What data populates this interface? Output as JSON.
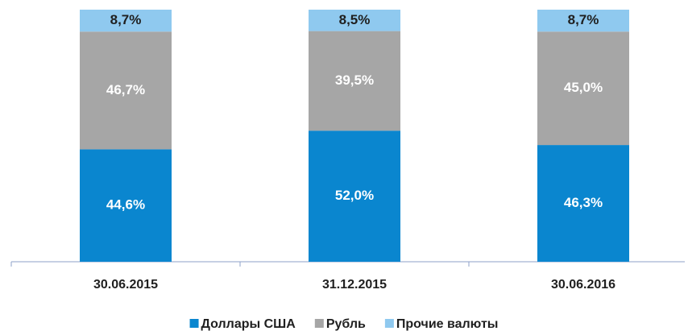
{
  "chart_data": {
    "type": "stacked-bar",
    "categories": [
      "30.06.2015",
      "31.12.2015",
      "30.06.2016"
    ],
    "series": [
      {
        "name": "Доллары США",
        "color": "#0a86cf",
        "values": [
          44.6,
          52.0,
          46.3
        ],
        "value_labels": [
          "44,6%",
          "52,0%",
          "46,3%"
        ]
      },
      {
        "name": "Рубль",
        "color": "#a6a6a6",
        "values": [
          46.7,
          39.5,
          45.0
        ],
        "value_labels": [
          "46,7%",
          "39,5%",
          "45,0%"
        ]
      },
      {
        "name": "Прочие валюты",
        "color": "#8fc9ef",
        "values": [
          8.7,
          8.5,
          8.7
        ],
        "value_labels": [
          "8,7%",
          "8,5%",
          "8,7%"
        ]
      }
    ],
    "legend": "bottom"
  }
}
